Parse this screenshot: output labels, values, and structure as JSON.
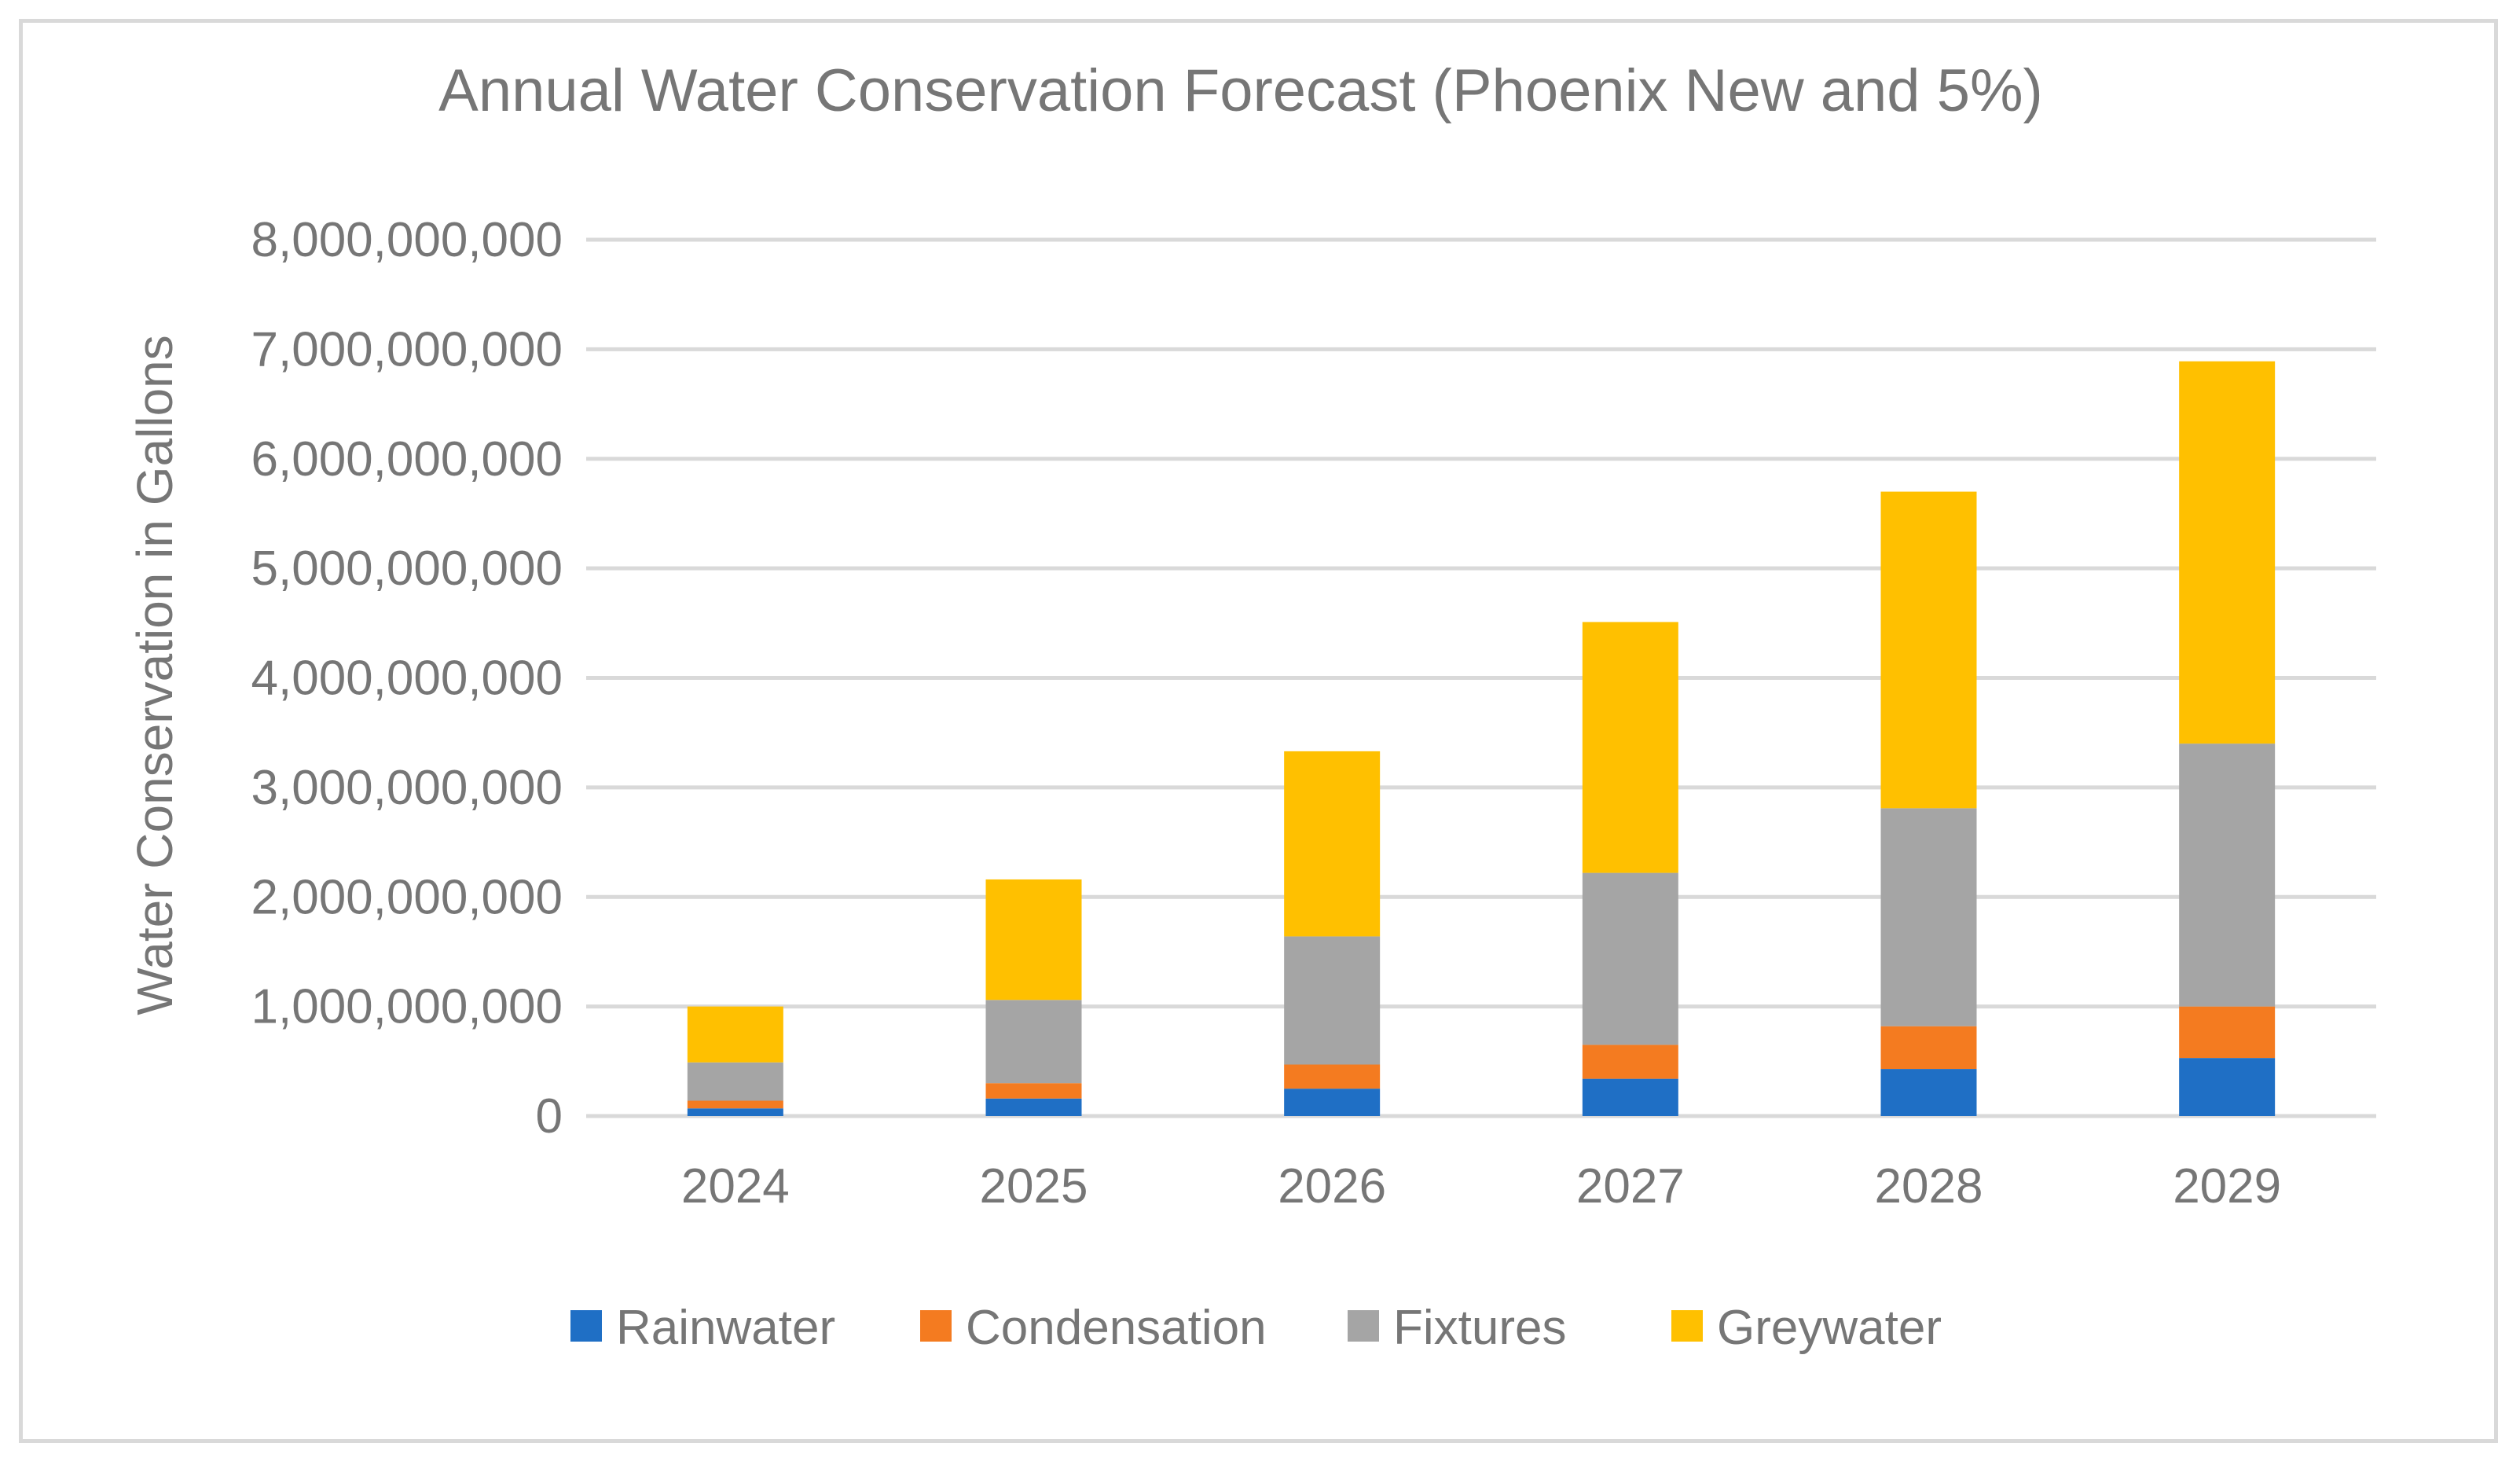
{
  "chart_data": {
    "type": "bar",
    "stacked": true,
    "title": "Annual Water Conservation Forecast (Phoenix New and 5%)",
    "xlabel": "",
    "ylabel": "Water Conservation in Gallons",
    "ylim": [
      0,
      8000000000
    ],
    "yticks": [
      0,
      1000000000,
      2000000000,
      3000000000,
      4000000000,
      5000000000,
      6000000000,
      7000000000,
      8000000000
    ],
    "ytick_labels": [
      "0",
      "1,000,000,000",
      "2,000,000,000",
      "3,000,000,000",
      "4,000,000,000",
      "5,000,000,000",
      "6,000,000,000",
      "7,000,000,000",
      "8,000,000,000"
    ],
    "categories": [
      "2024",
      "2025",
      "2026",
      "2027",
      "2028",
      "2029"
    ],
    "grid": true,
    "legend_position": "bottom",
    "series": [
      {
        "name": "Rainwater",
        "color": "#1f6fc5",
        "values": [
          70000000,
          160000000,
          250000000,
          340000000,
          430000000,
          530000000
        ]
      },
      {
        "name": "Condensation",
        "color": "#f47b20",
        "values": [
          70000000,
          140000000,
          220000000,
          310000000,
          390000000,
          470000000
        ]
      },
      {
        "name": "Fixtures",
        "color": "#a5a5a5",
        "values": [
          350000000,
          760000000,
          1170000000,
          1570000000,
          1990000000,
          2400000000
        ]
      },
      {
        "name": "Greywater",
        "color": "#ffc000",
        "values": [
          510000000,
          1100000000,
          1690000000,
          2290000000,
          2890000000,
          3490000000
        ]
      }
    ]
  }
}
